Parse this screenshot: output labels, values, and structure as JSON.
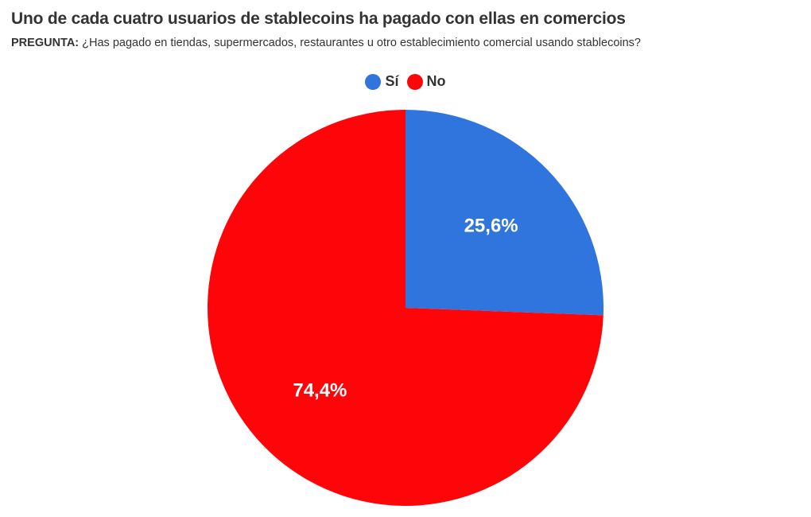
{
  "title": "Uno de cada cuatro usuarios de stablecoins ha pagado con ellas en comercios",
  "subtitle": {
    "label": "PREGUNTA:",
    "text": "¿Has pagado en tiendas, supermercados, restaurantes u otro establecimiento comercial usando stablecoins?"
  },
  "chart_data": {
    "type": "pie",
    "title": "Uno de cada cuatro usuarios de stablecoins ha pagado con ellas en comercios",
    "categories": [
      "Sí",
      "No"
    ],
    "values": [
      25.6,
      74.4
    ],
    "value_labels": [
      "25,6%",
      "74,4%"
    ],
    "colors": [
      "#2f75dd",
      "#fe0509"
    ],
    "legend_placement": "top-center",
    "start_angle": "12 o'clock",
    "direction": "clockwise"
  }
}
